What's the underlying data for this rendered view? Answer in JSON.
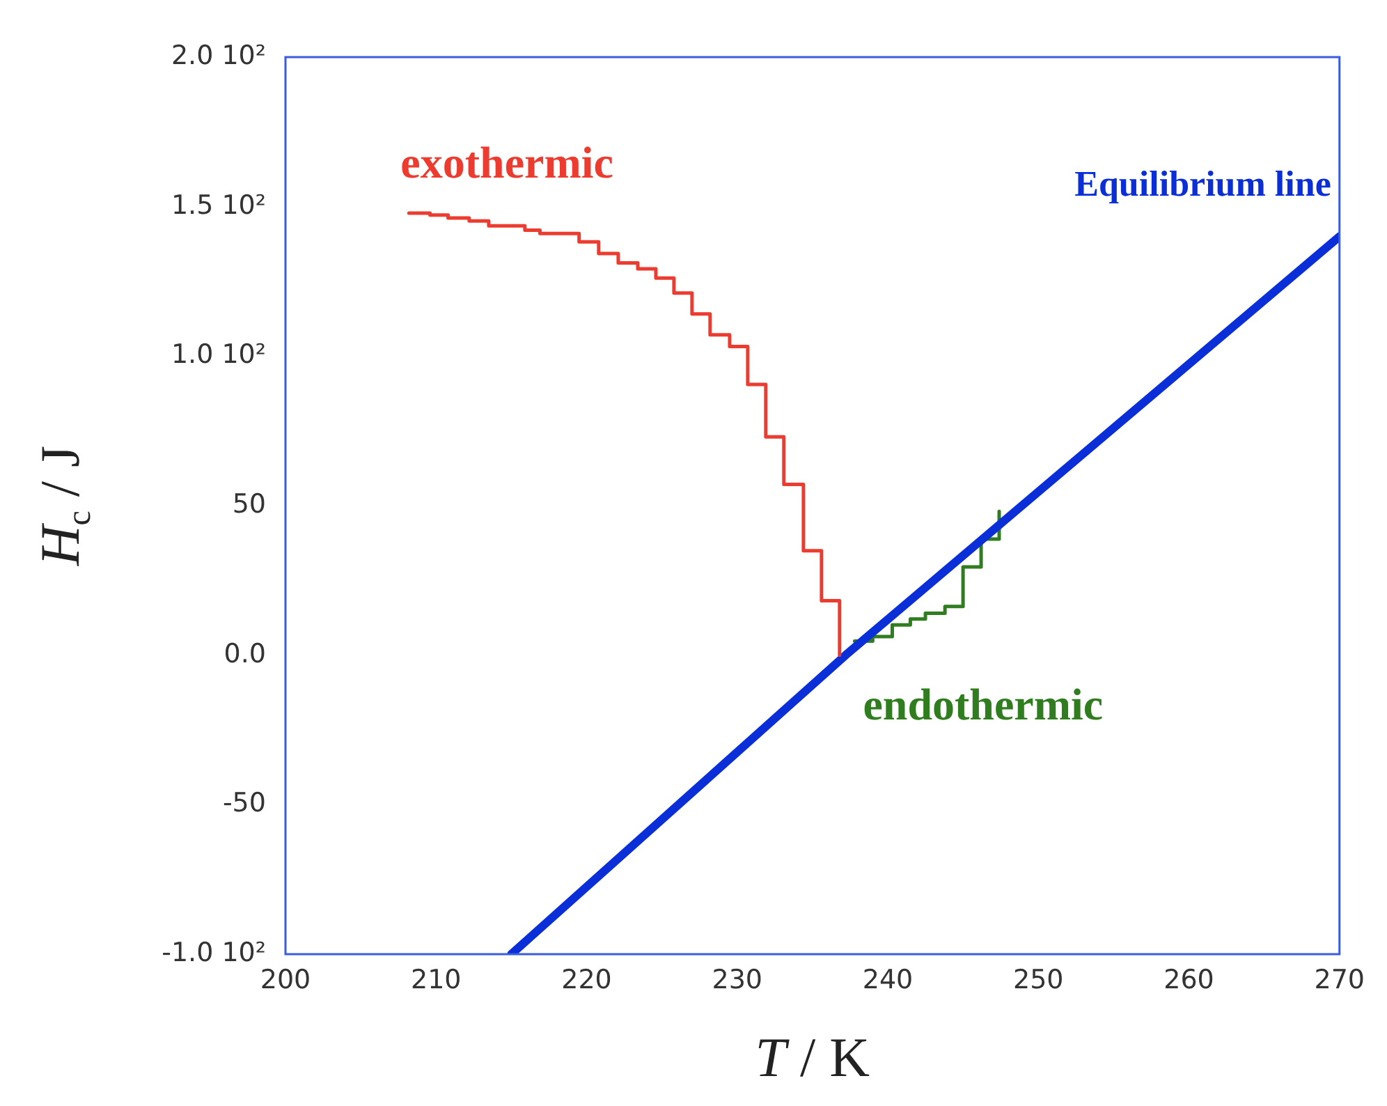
{
  "chart_data": {
    "type": "line",
    "xlabel": "T / K",
    "ylabel": "H$_{c}$ / J",
    "xlim": [
      200,
      270
    ],
    "xticks": [
      200,
      210,
      220,
      230,
      240,
      250,
      260,
      270
    ],
    "ylim": [
      -100,
      200
    ],
    "yticks": [
      {
        "value": -100,
        "label": "-1.0 10²"
      },
      {
        "value": -50,
        "label": "-50"
      },
      {
        "value": 0,
        "label": "0.0"
      },
      {
        "value": 50,
        "label": "50"
      },
      {
        "value": 100,
        "label": "1.0 10²"
      },
      {
        "value": 150,
        "label": "1.5 10²"
      },
      {
        "value": 200,
        "label": "2.0 10²"
      }
    ],
    "grid": false,
    "legend": false,
    "marker": "none",
    "series": [
      {
        "name": "exothermic",
        "type": "step",
        "color": "#ee3b2f",
        "x": [
          208.2,
          209.6,
          210.8,
          212.2,
          213.5,
          215.9,
          216.9,
          219.5,
          220.8,
          222.1,
          223.4,
          224.6,
          225.8,
          227.0,
          228.2,
          229.5,
          230.7,
          231.9,
          233.1,
          234.4,
          235.6,
          236.8
        ],
        "values": [
          147.8,
          147.2,
          146.2,
          145.2,
          143.6,
          142.1,
          141.0,
          138.2,
          134.3,
          131.2,
          129.2,
          126.1,
          121.1,
          114.1,
          107.1,
          103.2,
          90.5,
          73.0,
          57.1,
          34.9,
          18.2,
          0
        ]
      },
      {
        "name": "Equilibrium line",
        "color": "#0a2fd8",
        "x": [
          215,
          237.2,
          270
        ],
        "values": [
          -100,
          0,
          140
        ]
      },
      {
        "name": "endothermic",
        "type": "step",
        "color": "#2f7d1e",
        "x": [
          237.8,
          239.0,
          240.3,
          241.5,
          242.5,
          243.8,
          245.0,
          246.2,
          247.4
        ],
        "values": [
          4.7,
          6.2,
          10.1,
          12.1,
          14.0,
          16.3,
          29.5,
          38.8,
          48.1
        ]
      }
    ]
  }
}
